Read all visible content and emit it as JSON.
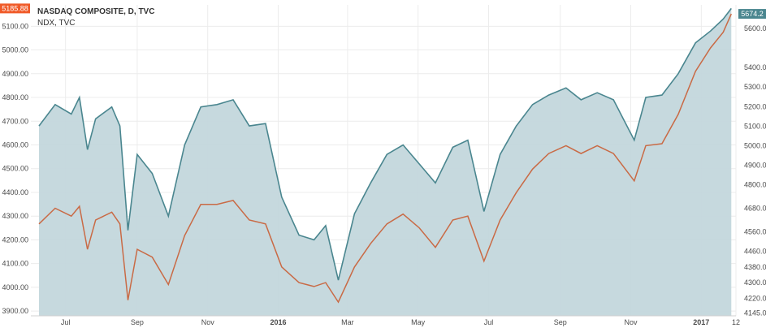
{
  "chart_data": {
    "type": "area",
    "title": "NASDAQ COMPOSITE, D, TVC",
    "subtitle": "NDX, TVC",
    "x_ticks": [
      "Jul",
      "Sep",
      "Nov",
      "2016",
      "Mar",
      "May",
      "Jul",
      "Sep",
      "Nov",
      "2017",
      "12"
    ],
    "left_axis": {
      "ticks": [
        "3900.00",
        "4000.00",
        "4100.00",
        "4200.00",
        "4300.00",
        "4400.00",
        "4500.00",
        "4600.00",
        "4700.00",
        "4800.00",
        "4900.00",
        "5000.00",
        "5100.00"
      ],
      "ylim": [
        3880,
        5190
      ]
    },
    "right_axis": {
      "ticks": [
        "4145.00",
        "4220.00",
        "4300.00",
        "4380.00",
        "4460.00",
        "4560.00",
        "4680.00",
        "4800.00",
        "4900.00",
        "5000.00",
        "5100.00",
        "5200.00",
        "5300.00",
        "5400.00",
        "5600.00"
      ],
      "ylim": [
        4130,
        5720
      ]
    },
    "grid": true,
    "x_range": [
      "2015-06",
      "2017-01"
    ],
    "series": [
      {
        "color": "#4a868f",
        "fill": "#c3d7dc",
        "axis": "left",
        "last_value_label": "5185.88",
        "last_value_color": "#f05a28",
        "x": [
          "2015-06-08",
          "2015-06-22",
          "2015-07-06",
          "2015-07-13",
          "2015-07-20",
          "2015-07-27",
          "2015-08-10",
          "2015-08-17",
          "2015-08-24",
          "2015-09-01",
          "2015-09-14",
          "2015-09-28",
          "2015-10-12",
          "2015-10-26",
          "2015-11-09",
          "2015-11-23",
          "2015-12-07",
          "2015-12-21",
          "2016-01-04",
          "2016-01-19",
          "2016-02-01",
          "2016-02-11",
          "2016-02-22",
          "2016-03-07",
          "2016-03-21",
          "2016-04-04",
          "2016-04-18",
          "2016-05-02",
          "2016-05-16",
          "2016-05-31",
          "2016-06-13",
          "2016-06-27",
          "2016-07-11",
          "2016-07-25",
          "2016-08-08",
          "2016-08-22",
          "2016-09-06",
          "2016-09-19",
          "2016-10-03",
          "2016-10-17",
          "2016-11-04",
          "2016-11-14",
          "2016-11-28",
          "2016-12-12",
          "2016-12-27",
          "2017-01-09",
          "2017-01-20",
          "2017-01-27"
        ],
        "values": [
          4680,
          4770,
          4730,
          4800,
          4580,
          4710,
          4760,
          4680,
          4240,
          4560,
          4480,
          4300,
          4600,
          4760,
          4770,
          4790,
          4680,
          4690,
          4380,
          4220,
          4200,
          4260,
          4030,
          4310,
          4440,
          4560,
          4600,
          4520,
          4440,
          4590,
          4620,
          4320,
          4560,
          4680,
          4770,
          4810,
          4840,
          4790,
          4820,
          4790,
          4620,
          4800,
          4810,
          4900,
          5030,
          5080,
          5130,
          5175
        ]
      },
      {
        "color": "#c96a45",
        "axis": "right",
        "last_value_label": "5674.2",
        "last_value_color": "#4a868f",
        "x": [
          "2015-06-08",
          "2015-06-22",
          "2015-07-06",
          "2015-07-13",
          "2015-07-20",
          "2015-07-27",
          "2015-08-10",
          "2015-08-17",
          "2015-08-24",
          "2015-09-01",
          "2015-09-14",
          "2015-09-28",
          "2015-10-12",
          "2015-10-26",
          "2015-11-09",
          "2015-11-23",
          "2015-12-07",
          "2015-12-21",
          "2016-01-04",
          "2016-01-19",
          "2016-02-01",
          "2016-02-11",
          "2016-02-22",
          "2016-03-07",
          "2016-03-21",
          "2016-04-04",
          "2016-04-18",
          "2016-05-02",
          "2016-05-16",
          "2016-05-31",
          "2016-06-13",
          "2016-06-27",
          "2016-07-11",
          "2016-07-25",
          "2016-08-08",
          "2016-08-22",
          "2016-09-06",
          "2016-09-19",
          "2016-10-03",
          "2016-10-17",
          "2016-11-04",
          "2016-11-14",
          "2016-11-28",
          "2016-12-12",
          "2016-12-27",
          "2017-01-09",
          "2017-01-20",
          "2017-01-27"
        ],
        "values": [
          4600,
          4680,
          4640,
          4690,
          4470,
          4620,
          4660,
          4600,
          4210,
          4470,
          4430,
          4290,
          4540,
          4700,
          4700,
          4720,
          4620,
          4600,
          4380,
          4300,
          4280,
          4300,
          4200,
          4380,
          4500,
          4600,
          4650,
          4580,
          4480,
          4620,
          4640,
          4410,
          4620,
          4760,
          4880,
          4960,
          5000,
          4960,
          5000,
          4960,
          4820,
          5000,
          5010,
          5160,
          5380,
          5500,
          5580,
          5674
        ]
      }
    ]
  }
}
